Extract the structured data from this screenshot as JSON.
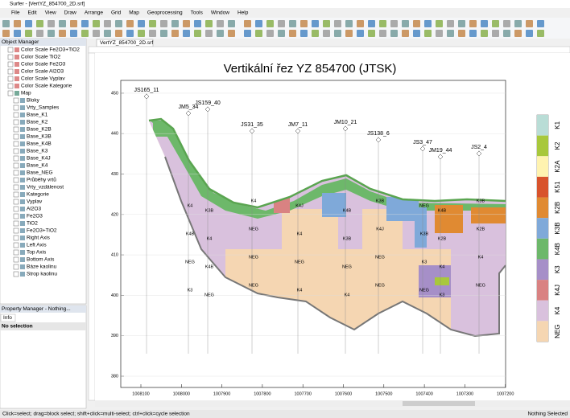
{
  "window": {
    "title": "Surfer - [VertYZ_854700_2D.srf]"
  },
  "menu": [
    "File",
    "Edit",
    "View",
    "Draw",
    "Arrange",
    "Grid",
    "Map",
    "Geoprocessing",
    "Tools",
    "Window",
    "Help"
  ],
  "object_manager": {
    "title": "Object Manager",
    "color_scales": [
      "Color Scale Fe2O3+TiO2",
      "Color Scale TiO2",
      "Color Scale Fe2O3",
      "Color Scale Al2O3",
      "Color Scale Vyplav",
      "Color Scale Kategorie"
    ],
    "map": {
      "label": "Map",
      "children": [
        "Bloky",
        "Vrty_Samples",
        "Base_K1",
        "Base_K2",
        "Base_K2B",
        "Base_K3B",
        "Base_K4B",
        "Base_K3",
        "Base_K4J",
        "Base_K4",
        "Base_NEG",
        "Průběhy vrtů",
        "Vrty_vzdálenost",
        "Kategorie",
        "Vyplav",
        "Al2O3",
        "Fe2O3",
        "TiO2",
        "Fe2O3+TiO2",
        "Right Axis",
        "Left Axis",
        "Top Axis",
        "Bottom Axis",
        "Báze kaolinu",
        "Strop kaolinu"
      ]
    }
  },
  "property_manager": {
    "title": "Property Manager - Nothing...",
    "tab": "Info",
    "text": "No selection"
  },
  "document_tab": "VertYZ_854700_2D.srf",
  "plot": {
    "title": "Vertikální řez YZ 854700 (JTSK)",
    "yticks": [
      "380",
      "390",
      "400",
      "410",
      "420",
      "430",
      "440",
      "450"
    ],
    "xticks": [
      "1008100",
      "1008000",
      "1007900",
      "1007800",
      "1007700",
      "1007600",
      "1007500",
      "1007400",
      "1007300",
      "1007200"
    ],
    "boreholes": [
      {
        "name": "JS165_11",
        "labels": []
      },
      {
        "name": "JM5_34",
        "labels": [
          "K4",
          "K4B",
          "NEG",
          "K3"
        ]
      },
      {
        "name": "JS159_40",
        "labels": [
          "K3B",
          "K4",
          "K4B",
          "NEG"
        ]
      },
      {
        "name": "JS31_35",
        "labels": [
          "K4",
          "NEG",
          "NEG",
          "NEG"
        ]
      },
      {
        "name": "JM7_11",
        "labels": [
          "K4J",
          "K4",
          "NEG",
          "K4"
        ]
      },
      {
        "name": "JM10_21",
        "labels": [
          "K4B",
          "K3B",
          "NEG",
          "K4"
        ]
      },
      {
        "name": "JS138_6",
        "labels": [
          "K3B",
          "K4J",
          "NEG",
          "NEG"
        ]
      },
      {
        "name": "JS3_47",
        "labels": [
          "NEG",
          "K3B",
          "K3",
          "NEG"
        ]
      },
      {
        "name": "JM19_44",
        "labels": [
          "K4B",
          "K2B",
          "K4",
          "K3"
        ]
      },
      {
        "name": "JS2_4",
        "labels": [
          "K3B",
          "K2B",
          "K4",
          "NEG"
        ]
      }
    ],
    "legend": [
      {
        "label": "K1",
        "color": "#b9ddd6"
      },
      {
        "label": "K2",
        "color": "#a8c83c"
      },
      {
        "label": "K2A",
        "color": "#fff3b0"
      },
      {
        "label": "K51",
        "color": "#d8532c"
      },
      {
        "label": "K2B",
        "color": "#e08a32"
      },
      {
        "label": "K3B",
        "color": "#7fa9d9"
      },
      {
        "label": "K4B",
        "color": "#6db86a"
      },
      {
        "label": "K3",
        "color": "#a68fc8"
      },
      {
        "label": "K4J",
        "color": "#d98282"
      },
      {
        "label": "K4",
        "color": "#d9c1dd"
      },
      {
        "label": "NEG",
        "color": "#f5d6b2"
      }
    ]
  },
  "status": {
    "hint": "Click=select; drag=block select; shift+click=multi-select; ctrl+click=cycle selection",
    "selection": "Nothing Selected"
  }
}
